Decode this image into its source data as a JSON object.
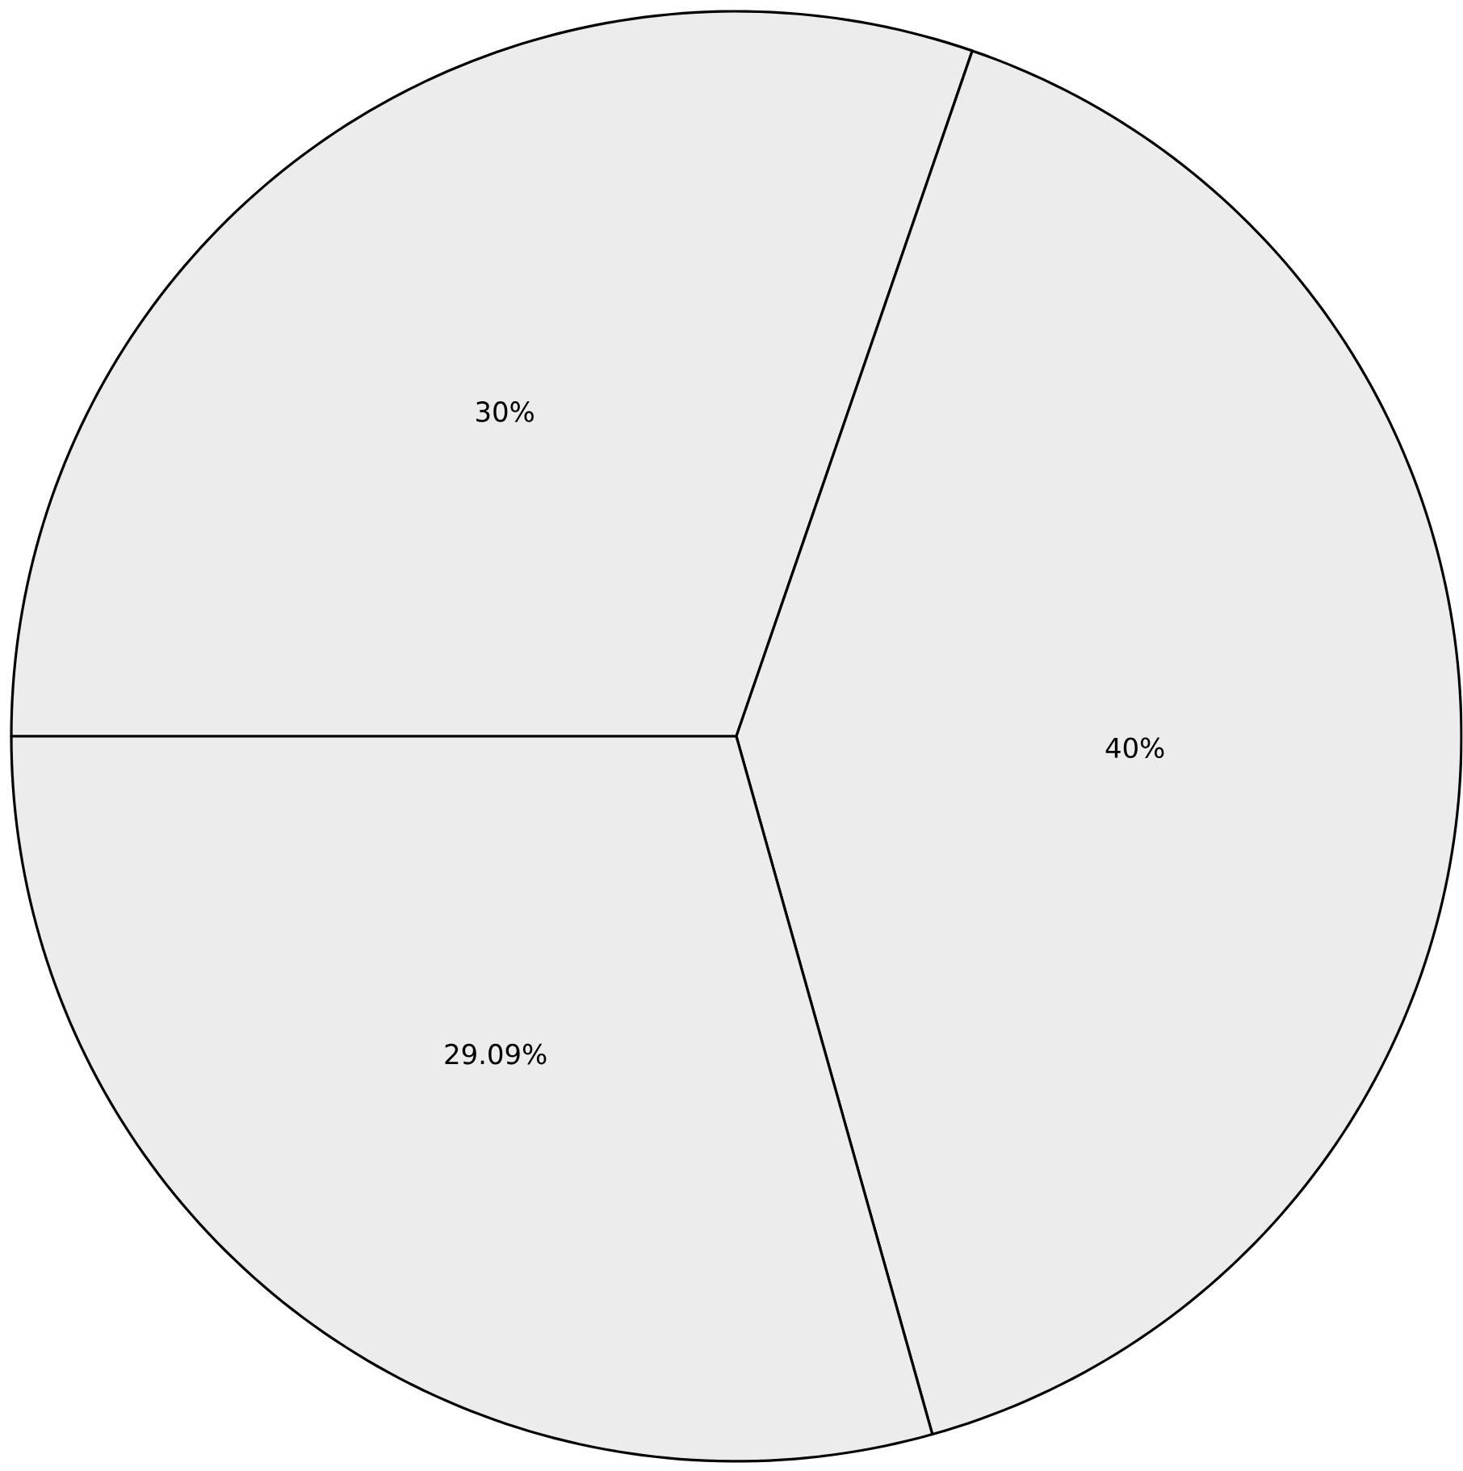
{
  "chart_data": {
    "type": "pie",
    "categories": [
      null,
      null,
      null
    ],
    "values": [
      30,
      40,
      29.09
    ],
    "colors": [
      "#ececec",
      "#ececec",
      "#ececec"
    ],
    "value_labels": [
      "30%",
      "40%",
      "29.09%"
    ]
  }
}
